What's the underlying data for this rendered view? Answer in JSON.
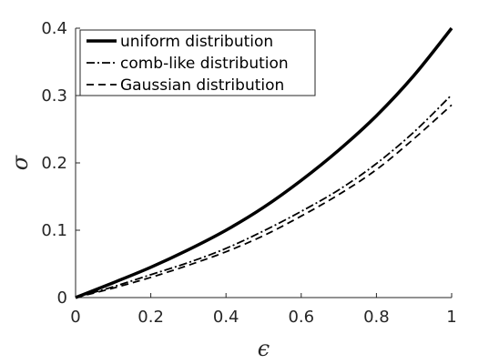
{
  "chart_data": {
    "type": "line",
    "title": "",
    "xlabel": "ϵ",
    "ylabel": "σ",
    "xlim": [
      0,
      1
    ],
    "ylim": [
      0,
      0.4
    ],
    "x_ticks": [
      0,
      0.2,
      0.4,
      0.6,
      0.8,
      1
    ],
    "x_tick_labels": [
      "0",
      "0.2",
      "0.4",
      "0.6",
      "0.8",
      "1"
    ],
    "y_ticks": [
      0,
      0.1,
      0.2,
      0.3,
      0.4
    ],
    "y_tick_labels": [
      "0",
      "0.1",
      "0.2",
      "0.3",
      "0.4"
    ],
    "grid": false,
    "legend_position": "top-left",
    "x": [
      0,
      0.1,
      0.2,
      0.3,
      0.4,
      0.5,
      0.6,
      0.7,
      0.8,
      0.9,
      1.0
    ],
    "series": [
      {
        "name": "uniform distribution",
        "style": "solid",
        "color": "#000000",
        "values": [
          0,
          0.022,
          0.045,
          0.071,
          0.1,
          0.134,
          0.174,
          0.219,
          0.27,
          0.33,
          0.4
        ]
      },
      {
        "name": "comb-like distribution",
        "style": "dashdot",
        "color": "#000000",
        "values": [
          0,
          0.016,
          0.034,
          0.052,
          0.073,
          0.099,
          0.128,
          0.16,
          0.199,
          0.246,
          0.301
        ]
      },
      {
        "name": "Gaussian distribution",
        "style": "dashed",
        "color": "#000000",
        "values": [
          0,
          0.014,
          0.03,
          0.048,
          0.068,
          0.092,
          0.121,
          0.153,
          0.19,
          0.236,
          0.286
        ]
      }
    ]
  }
}
